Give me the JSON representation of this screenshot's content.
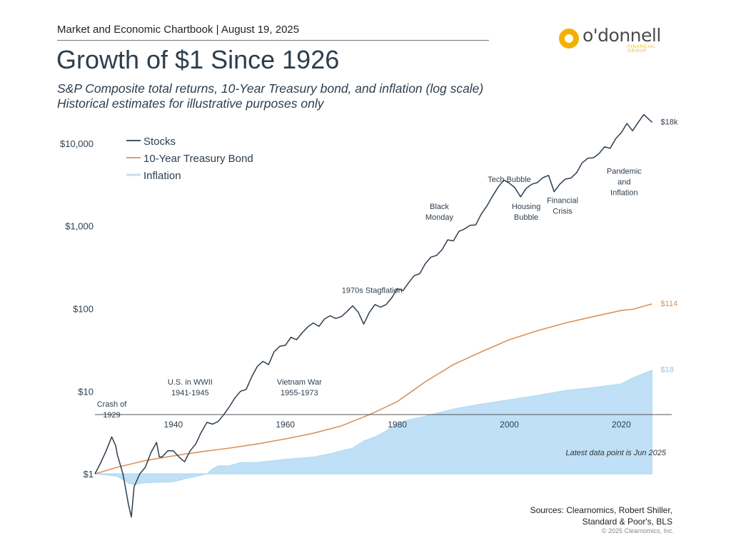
{
  "header": {
    "chartbook": "Market and Economic Chartbook | August 19, 2025",
    "logo_name": "o'donnell",
    "logo_sub": "FINANCIAL GROUP"
  },
  "title": "Growth of $1 Since 1926",
  "subtitle1": "S&P Composite total returns, 10-Year Treasury bond, and inflation (log scale)",
  "subtitle2": "Historical estimates for illustrative purposes only",
  "footnote": "Latest data point is Jun 2025",
  "sources_line1": "Sources: Clearnomics, Robert Shiller,",
  "sources_line2": "Standard & Poor's, BLS",
  "copyright": "© 2025 Clearnomics, Inc.",
  "chart_data": {
    "type": "line",
    "yscale": "log",
    "xlim": [
      1926,
      2029
    ],
    "ylim": [
      0.2,
      50000
    ],
    "y_ticks": [
      {
        "value": 1,
        "label": "$1"
      },
      {
        "value": 10,
        "label": "$10"
      },
      {
        "value": 100,
        "label": "$100"
      },
      {
        "value": 1000,
        "label": "$1,000"
      },
      {
        "value": 10000,
        "label": "$10,000"
      }
    ],
    "x_ticks": [
      1940,
      1960,
      1980,
      2000,
      2020
    ],
    "legend": {
      "placement": "top-left"
    },
    "colors": {
      "stocks": "#2d3e4e",
      "bonds": "#d9935a",
      "inflation": "#bfe0f6",
      "axis": "#555555"
    },
    "series": [
      {
        "name": "Stocks",
        "key": "stocks",
        "end_label": "$18k",
        "points": [
          [
            1926,
            1
          ],
          [
            1927,
            1.35
          ],
          [
            1928,
            1.9
          ],
          [
            1929,
            2.8
          ],
          [
            1929.7,
            2.2
          ],
          [
            1930,
            1.7
          ],
          [
            1931,
            1.0
          ],
          [
            1932,
            0.42
          ],
          [
            1932.5,
            0.3
          ],
          [
            1933,
            0.7
          ],
          [
            1934,
            1.0
          ],
          [
            1935,
            1.2
          ],
          [
            1936,
            1.8
          ],
          [
            1937,
            2.4
          ],
          [
            1937.5,
            1.6
          ],
          [
            1938,
            1.6
          ],
          [
            1939,
            1.9
          ],
          [
            1940,
            1.9
          ],
          [
            1941,
            1.6
          ],
          [
            1942,
            1.4
          ],
          [
            1943,
            1.9
          ],
          [
            1944,
            2.3
          ],
          [
            1945,
            3.2
          ],
          [
            1946,
            4.2
          ],
          [
            1947,
            4.0
          ],
          [
            1948,
            4.3
          ],
          [
            1949,
            5.2
          ],
          [
            1950,
            6.5
          ],
          [
            1951,
            8.3
          ],
          [
            1952,
            10
          ],
          [
            1953,
            10.5
          ],
          [
            1954,
            15
          ],
          [
            1955,
            20
          ],
          [
            1956,
            23
          ],
          [
            1957,
            21
          ],
          [
            1958,
            30
          ],
          [
            1959,
            35
          ],
          [
            1960,
            36
          ],
          [
            1961,
            45
          ],
          [
            1962,
            42
          ],
          [
            1963,
            51
          ],
          [
            1964,
            60
          ],
          [
            1965,
            67
          ],
          [
            1966,
            61
          ],
          [
            1967,
            75
          ],
          [
            1968,
            82
          ],
          [
            1969,
            76
          ],
          [
            1970,
            80
          ],
          [
            1971,
            92
          ],
          [
            1972,
            108
          ],
          [
            1973,
            91
          ],
          [
            1974,
            65
          ],
          [
            1975,
            90
          ],
          [
            1976,
            112
          ],
          [
            1977,
            104
          ],
          [
            1978,
            112
          ],
          [
            1979,
            135
          ],
          [
            1980,
            175
          ],
          [
            1981,
            165
          ],
          [
            1982,
            205
          ],
          [
            1983,
            250
          ],
          [
            1984,
            265
          ],
          [
            1985,
            350
          ],
          [
            1986,
            420
          ],
          [
            1987,
            440
          ],
          [
            1988,
            520
          ],
          [
            1989,
            680
          ],
          [
            1990,
            660
          ],
          [
            1991,
            860
          ],
          [
            1992,
            920
          ],
          [
            1993,
            1020
          ],
          [
            1994,
            1030
          ],
          [
            1995,
            1400
          ],
          [
            1996,
            1750
          ],
          [
            1997,
            2300
          ],
          [
            1998,
            2950
          ],
          [
            1999,
            3600
          ],
          [
            2000,
            3300
          ],
          [
            2001,
            2900
          ],
          [
            2002,
            2250
          ],
          [
            2003,
            2850
          ],
          [
            2004,
            3200
          ],
          [
            2005,
            3350
          ],
          [
            2006,
            3850
          ],
          [
            2007,
            4100
          ],
          [
            2008,
            2600
          ],
          [
            2009,
            3200
          ],
          [
            2010,
            3700
          ],
          [
            2011,
            3800
          ],
          [
            2012,
            4400
          ],
          [
            2013,
            5800
          ],
          [
            2014,
            6600
          ],
          [
            2015,
            6700
          ],
          [
            2016,
            7500
          ],
          [
            2017,
            9100
          ],
          [
            2018,
            8700
          ],
          [
            2019,
            11400
          ],
          [
            2020,
            13500
          ],
          [
            2021,
            17400
          ],
          [
            2022,
            14200
          ],
          [
            2023,
            17900
          ],
          [
            2024,
            22300
          ],
          [
            2025.5,
            18000
          ]
        ]
      },
      {
        "name": "10-Year Treasury Bond",
        "key": "bonds",
        "end_label": "$114",
        "points": [
          [
            1926,
            1
          ],
          [
            1930,
            1.2
          ],
          [
            1935,
            1.45
          ],
          [
            1940,
            1.65
          ],
          [
            1945,
            1.85
          ],
          [
            1950,
            2.05
          ],
          [
            1955,
            2.3
          ],
          [
            1960,
            2.65
          ],
          [
            1965,
            3.1
          ],
          [
            1970,
            3.8
          ],
          [
            1975,
            5.2
          ],
          [
            1980,
            7.5
          ],
          [
            1985,
            13
          ],
          [
            1990,
            21
          ],
          [
            1995,
            30
          ],
          [
            2000,
            42
          ],
          [
            2005,
            54
          ],
          [
            2010,
            67
          ],
          [
            2015,
            80
          ],
          [
            2020,
            95
          ],
          [
            2022,
            98
          ],
          [
            2025.5,
            114
          ]
        ]
      },
      {
        "name": "Inflation",
        "key": "inflation",
        "end_label": "$18",
        "points": [
          [
            1926,
            1
          ],
          [
            1928,
            0.97
          ],
          [
            1930,
            0.93
          ],
          [
            1932,
            0.77
          ],
          [
            1933,
            0.74
          ],
          [
            1935,
            0.78
          ],
          [
            1940,
            0.8
          ],
          [
            1942,
            0.87
          ],
          [
            1944,
            0.93
          ],
          [
            1946,
            1.0
          ],
          [
            1947,
            1.15
          ],
          [
            1948,
            1.25
          ],
          [
            1950,
            1.25
          ],
          [
            1952,
            1.37
          ],
          [
            1955,
            1.38
          ],
          [
            1958,
            1.45
          ],
          [
            1960,
            1.5
          ],
          [
            1965,
            1.6
          ],
          [
            1968,
            1.75
          ],
          [
            1970,
            1.9
          ],
          [
            1972,
            2.05
          ],
          [
            1974,
            2.5
          ],
          [
            1976,
            2.8
          ],
          [
            1978,
            3.3
          ],
          [
            1980,
            4.1
          ],
          [
            1982,
            4.5
          ],
          [
            1985,
            5.0
          ],
          [
            1990,
            6.1
          ],
          [
            1995,
            7.0
          ],
          [
            2000,
            7.9
          ],
          [
            2005,
            8.9
          ],
          [
            2010,
            10.2
          ],
          [
            2015,
            11.1
          ],
          [
            2020,
            12.3
          ],
          [
            2022,
            14.5
          ],
          [
            2025.5,
            18
          ]
        ]
      }
    ],
    "annotations": [
      {
        "lines": [
          "Crash of",
          "1929"
        ],
        "x": 1929,
        "y": 6.5
      },
      {
        "lines": [
          "U.S. in WWII",
          "1941-1945"
        ],
        "x": 1943,
        "y": 12
      },
      {
        "lines": [
          "Vietnam War",
          "1955-1973"
        ],
        "x": 1962.5,
        "y": 12
      },
      {
        "lines": [
          "1970s Stagflation"
        ],
        "x": 1975.5,
        "y": 155
      },
      {
        "lines": [
          "Black",
          "Monday"
        ],
        "x": 1987.5,
        "y": 1600
      },
      {
        "lines": [
          "Tech Bubble"
        ],
        "x": 2000,
        "y": 3400
      },
      {
        "lines": [
          "Housing",
          "Bubble"
        ],
        "x": 2003,
        "y": 1600
      },
      {
        "lines": [
          "Financial",
          "Crisis"
        ],
        "x": 2009.5,
        "y": 1900
      },
      {
        "lines": [
          "Pandemic",
          "and",
          "Inflation"
        ],
        "x": 2020.5,
        "y": 4300
      }
    ]
  }
}
